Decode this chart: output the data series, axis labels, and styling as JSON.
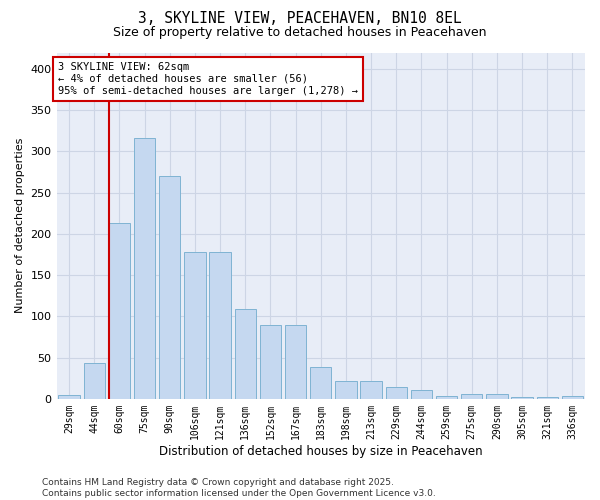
{
  "title_line1": "3, SKYLINE VIEW, PEACEHAVEN, BN10 8EL",
  "title_line2": "Size of property relative to detached houses in Peacehaven",
  "xlabel": "Distribution of detached houses by size in Peacehaven",
  "ylabel": "Number of detached properties",
  "categories": [
    "29sqm",
    "44sqm",
    "60sqm",
    "75sqm",
    "90sqm",
    "106sqm",
    "121sqm",
    "136sqm",
    "152sqm",
    "167sqm",
    "183sqm",
    "198sqm",
    "213sqm",
    "229sqm",
    "244sqm",
    "259sqm",
    "275sqm",
    "290sqm",
    "305sqm",
    "321sqm",
    "336sqm"
  ],
  "values": [
    5,
    44,
    213,
    316,
    270,
    178,
    178,
    109,
    90,
    90,
    38,
    22,
    22,
    14,
    11,
    4,
    6,
    6,
    2,
    2,
    3
  ],
  "bar_color": "#c5d8f0",
  "bar_edge_color": "#7fb3d3",
  "vline_index": 2,
  "vline_color": "#cc0000",
  "annotation_text": "3 SKYLINE VIEW: 62sqm\n← 4% of detached houses are smaller (56)\n95% of semi-detached houses are larger (1,278) →",
  "annotation_box_facecolor": "#ffffff",
  "annotation_box_edgecolor": "#cc0000",
  "ylim_max": 420,
  "yticks": [
    0,
    50,
    100,
    150,
    200,
    250,
    300,
    350,
    400
  ],
  "grid_color": "#cdd5e5",
  "bg_color": "#e8edf7",
  "footer_text": "Contains HM Land Registry data © Crown copyright and database right 2025.\nContains public sector information licensed under the Open Government Licence v3.0."
}
